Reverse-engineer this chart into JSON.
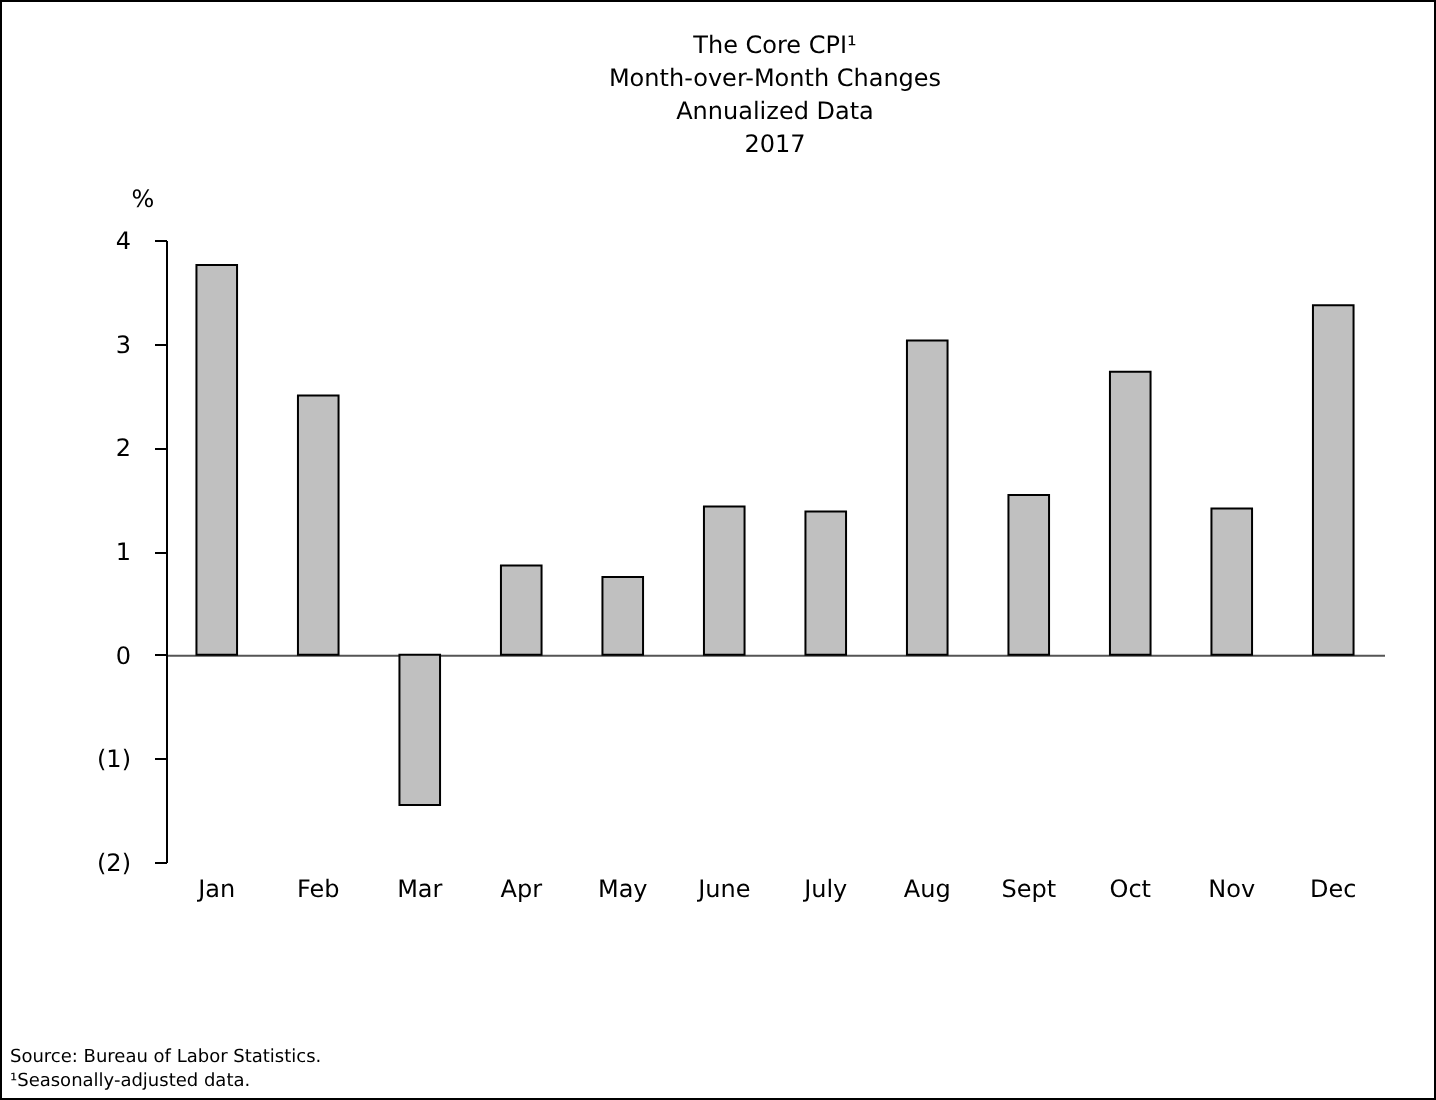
{
  "chart_data": {
    "type": "bar",
    "title": [
      "The Core CPI¹",
      "Month-over-Month Changes",
      "Annualized Data",
      "2017"
    ],
    "ylabel": "%",
    "categories": [
      "Jan",
      "Feb",
      "Mar",
      "Apr",
      "May",
      "June",
      "July",
      "Aug",
      "Sept",
      "Oct",
      "Nov",
      "Dec"
    ],
    "values": [
      3.76,
      2.5,
      -1.45,
      0.86,
      0.75,
      1.43,
      1.38,
      3.03,
      1.54,
      2.73,
      1.41,
      3.37
    ],
    "color": "#c0c0c0",
    "ylim": [
      -2,
      4
    ],
    "yticks": [
      {
        "value": -2,
        "label": "(2)"
      },
      {
        "value": -1,
        "label": "(1)"
      },
      0,
      1,
      2,
      3,
      4
    ],
    "annotations": [
      "Source: Bureau of Labor Statistics.",
      "¹Seasonally-adjusted data."
    ]
  }
}
